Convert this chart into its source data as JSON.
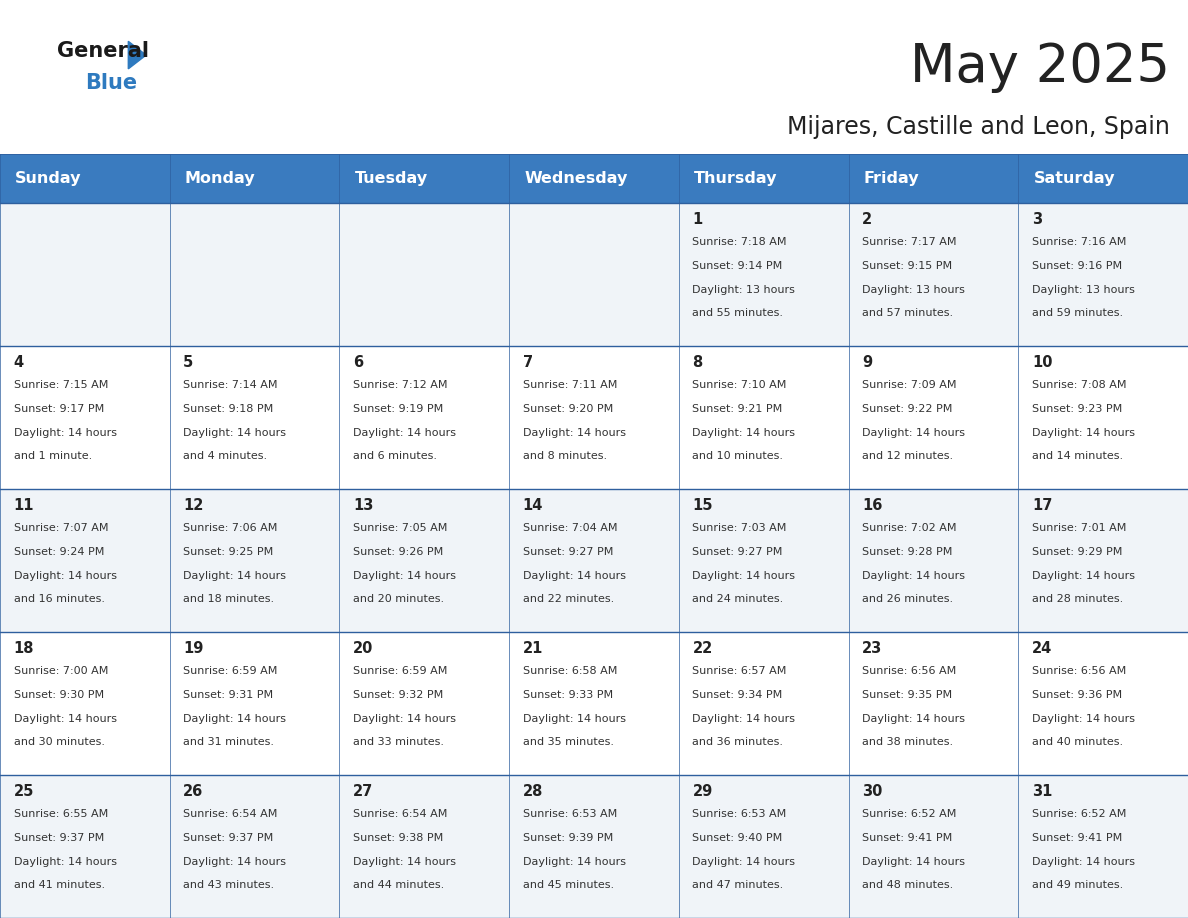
{
  "title": "May 2025",
  "subtitle": "Mijares, Castille and Leon, Spain",
  "header_bg": "#3a7bbf",
  "header_text": "#ffffff",
  "row0_bg": "#f0f4f8",
  "row1_bg": "#ffffff",
  "row2_bg": "#f0f4f8",
  "row3_bg": "#ffffff",
  "row4_bg": "#f0f4f8",
  "grid_line_color": "#2e5f9e",
  "day_headers": [
    "Sunday",
    "Monday",
    "Tuesday",
    "Wednesday",
    "Thursday",
    "Friday",
    "Saturday"
  ],
  "days": [
    {
      "day": 1,
      "col": 4,
      "row": 0,
      "sunrise": "7:18 AM",
      "sunset": "9:14 PM",
      "daylight": "13 hours and 55 minutes."
    },
    {
      "day": 2,
      "col": 5,
      "row": 0,
      "sunrise": "7:17 AM",
      "sunset": "9:15 PM",
      "daylight": "13 hours and 57 minutes."
    },
    {
      "day": 3,
      "col": 6,
      "row": 0,
      "sunrise": "7:16 AM",
      "sunset": "9:16 PM",
      "daylight": "13 hours and 59 minutes."
    },
    {
      "day": 4,
      "col": 0,
      "row": 1,
      "sunrise": "7:15 AM",
      "sunset": "9:17 PM",
      "daylight": "14 hours and 1 minute."
    },
    {
      "day": 5,
      "col": 1,
      "row": 1,
      "sunrise": "7:14 AM",
      "sunset": "9:18 PM",
      "daylight": "14 hours and 4 minutes."
    },
    {
      "day": 6,
      "col": 2,
      "row": 1,
      "sunrise": "7:12 AM",
      "sunset": "9:19 PM",
      "daylight": "14 hours and 6 minutes."
    },
    {
      "day": 7,
      "col": 3,
      "row": 1,
      "sunrise": "7:11 AM",
      "sunset": "9:20 PM",
      "daylight": "14 hours and 8 minutes."
    },
    {
      "day": 8,
      "col": 4,
      "row": 1,
      "sunrise": "7:10 AM",
      "sunset": "9:21 PM",
      "daylight": "14 hours and 10 minutes."
    },
    {
      "day": 9,
      "col": 5,
      "row": 1,
      "sunrise": "7:09 AM",
      "sunset": "9:22 PM",
      "daylight": "14 hours and 12 minutes."
    },
    {
      "day": 10,
      "col": 6,
      "row": 1,
      "sunrise": "7:08 AM",
      "sunset": "9:23 PM",
      "daylight": "14 hours and 14 minutes."
    },
    {
      "day": 11,
      "col": 0,
      "row": 2,
      "sunrise": "7:07 AM",
      "sunset": "9:24 PM",
      "daylight": "14 hours and 16 minutes."
    },
    {
      "day": 12,
      "col": 1,
      "row": 2,
      "sunrise": "7:06 AM",
      "sunset": "9:25 PM",
      "daylight": "14 hours and 18 minutes."
    },
    {
      "day": 13,
      "col": 2,
      "row": 2,
      "sunrise": "7:05 AM",
      "sunset": "9:26 PM",
      "daylight": "14 hours and 20 minutes."
    },
    {
      "day": 14,
      "col": 3,
      "row": 2,
      "sunrise": "7:04 AM",
      "sunset": "9:27 PM",
      "daylight": "14 hours and 22 minutes."
    },
    {
      "day": 15,
      "col": 4,
      "row": 2,
      "sunrise": "7:03 AM",
      "sunset": "9:27 PM",
      "daylight": "14 hours and 24 minutes."
    },
    {
      "day": 16,
      "col": 5,
      "row": 2,
      "sunrise": "7:02 AM",
      "sunset": "9:28 PM",
      "daylight": "14 hours and 26 minutes."
    },
    {
      "day": 17,
      "col": 6,
      "row": 2,
      "sunrise": "7:01 AM",
      "sunset": "9:29 PM",
      "daylight": "14 hours and 28 minutes."
    },
    {
      "day": 18,
      "col": 0,
      "row": 3,
      "sunrise": "7:00 AM",
      "sunset": "9:30 PM",
      "daylight": "14 hours and 30 minutes."
    },
    {
      "day": 19,
      "col": 1,
      "row": 3,
      "sunrise": "6:59 AM",
      "sunset": "9:31 PM",
      "daylight": "14 hours and 31 minutes."
    },
    {
      "day": 20,
      "col": 2,
      "row": 3,
      "sunrise": "6:59 AM",
      "sunset": "9:32 PM",
      "daylight": "14 hours and 33 minutes."
    },
    {
      "day": 21,
      "col": 3,
      "row": 3,
      "sunrise": "6:58 AM",
      "sunset": "9:33 PM",
      "daylight": "14 hours and 35 minutes."
    },
    {
      "day": 22,
      "col": 4,
      "row": 3,
      "sunrise": "6:57 AM",
      "sunset": "9:34 PM",
      "daylight": "14 hours and 36 minutes."
    },
    {
      "day": 23,
      "col": 5,
      "row": 3,
      "sunrise": "6:56 AM",
      "sunset": "9:35 PM",
      "daylight": "14 hours and 38 minutes."
    },
    {
      "day": 24,
      "col": 6,
      "row": 3,
      "sunrise": "6:56 AM",
      "sunset": "9:36 PM",
      "daylight": "14 hours and 40 minutes."
    },
    {
      "day": 25,
      "col": 0,
      "row": 4,
      "sunrise": "6:55 AM",
      "sunset": "9:37 PM",
      "daylight": "14 hours and 41 minutes."
    },
    {
      "day": 26,
      "col": 1,
      "row": 4,
      "sunrise": "6:54 AM",
      "sunset": "9:37 PM",
      "daylight": "14 hours and 43 minutes."
    },
    {
      "day": 27,
      "col": 2,
      "row": 4,
      "sunrise": "6:54 AM",
      "sunset": "9:38 PM",
      "daylight": "14 hours and 44 minutes."
    },
    {
      "day": 28,
      "col": 3,
      "row": 4,
      "sunrise": "6:53 AM",
      "sunset": "9:39 PM",
      "daylight": "14 hours and 45 minutes."
    },
    {
      "day": 29,
      "col": 4,
      "row": 4,
      "sunrise": "6:53 AM",
      "sunset": "9:40 PM",
      "daylight": "14 hours and 47 minutes."
    },
    {
      "day": 30,
      "col": 5,
      "row": 4,
      "sunrise": "6:52 AM",
      "sunset": "9:41 PM",
      "daylight": "14 hours and 48 minutes."
    },
    {
      "day": 31,
      "col": 6,
      "row": 4,
      "sunrise": "6:52 AM",
      "sunset": "9:41 PM",
      "daylight": "14 hours and 49 minutes."
    }
  ]
}
